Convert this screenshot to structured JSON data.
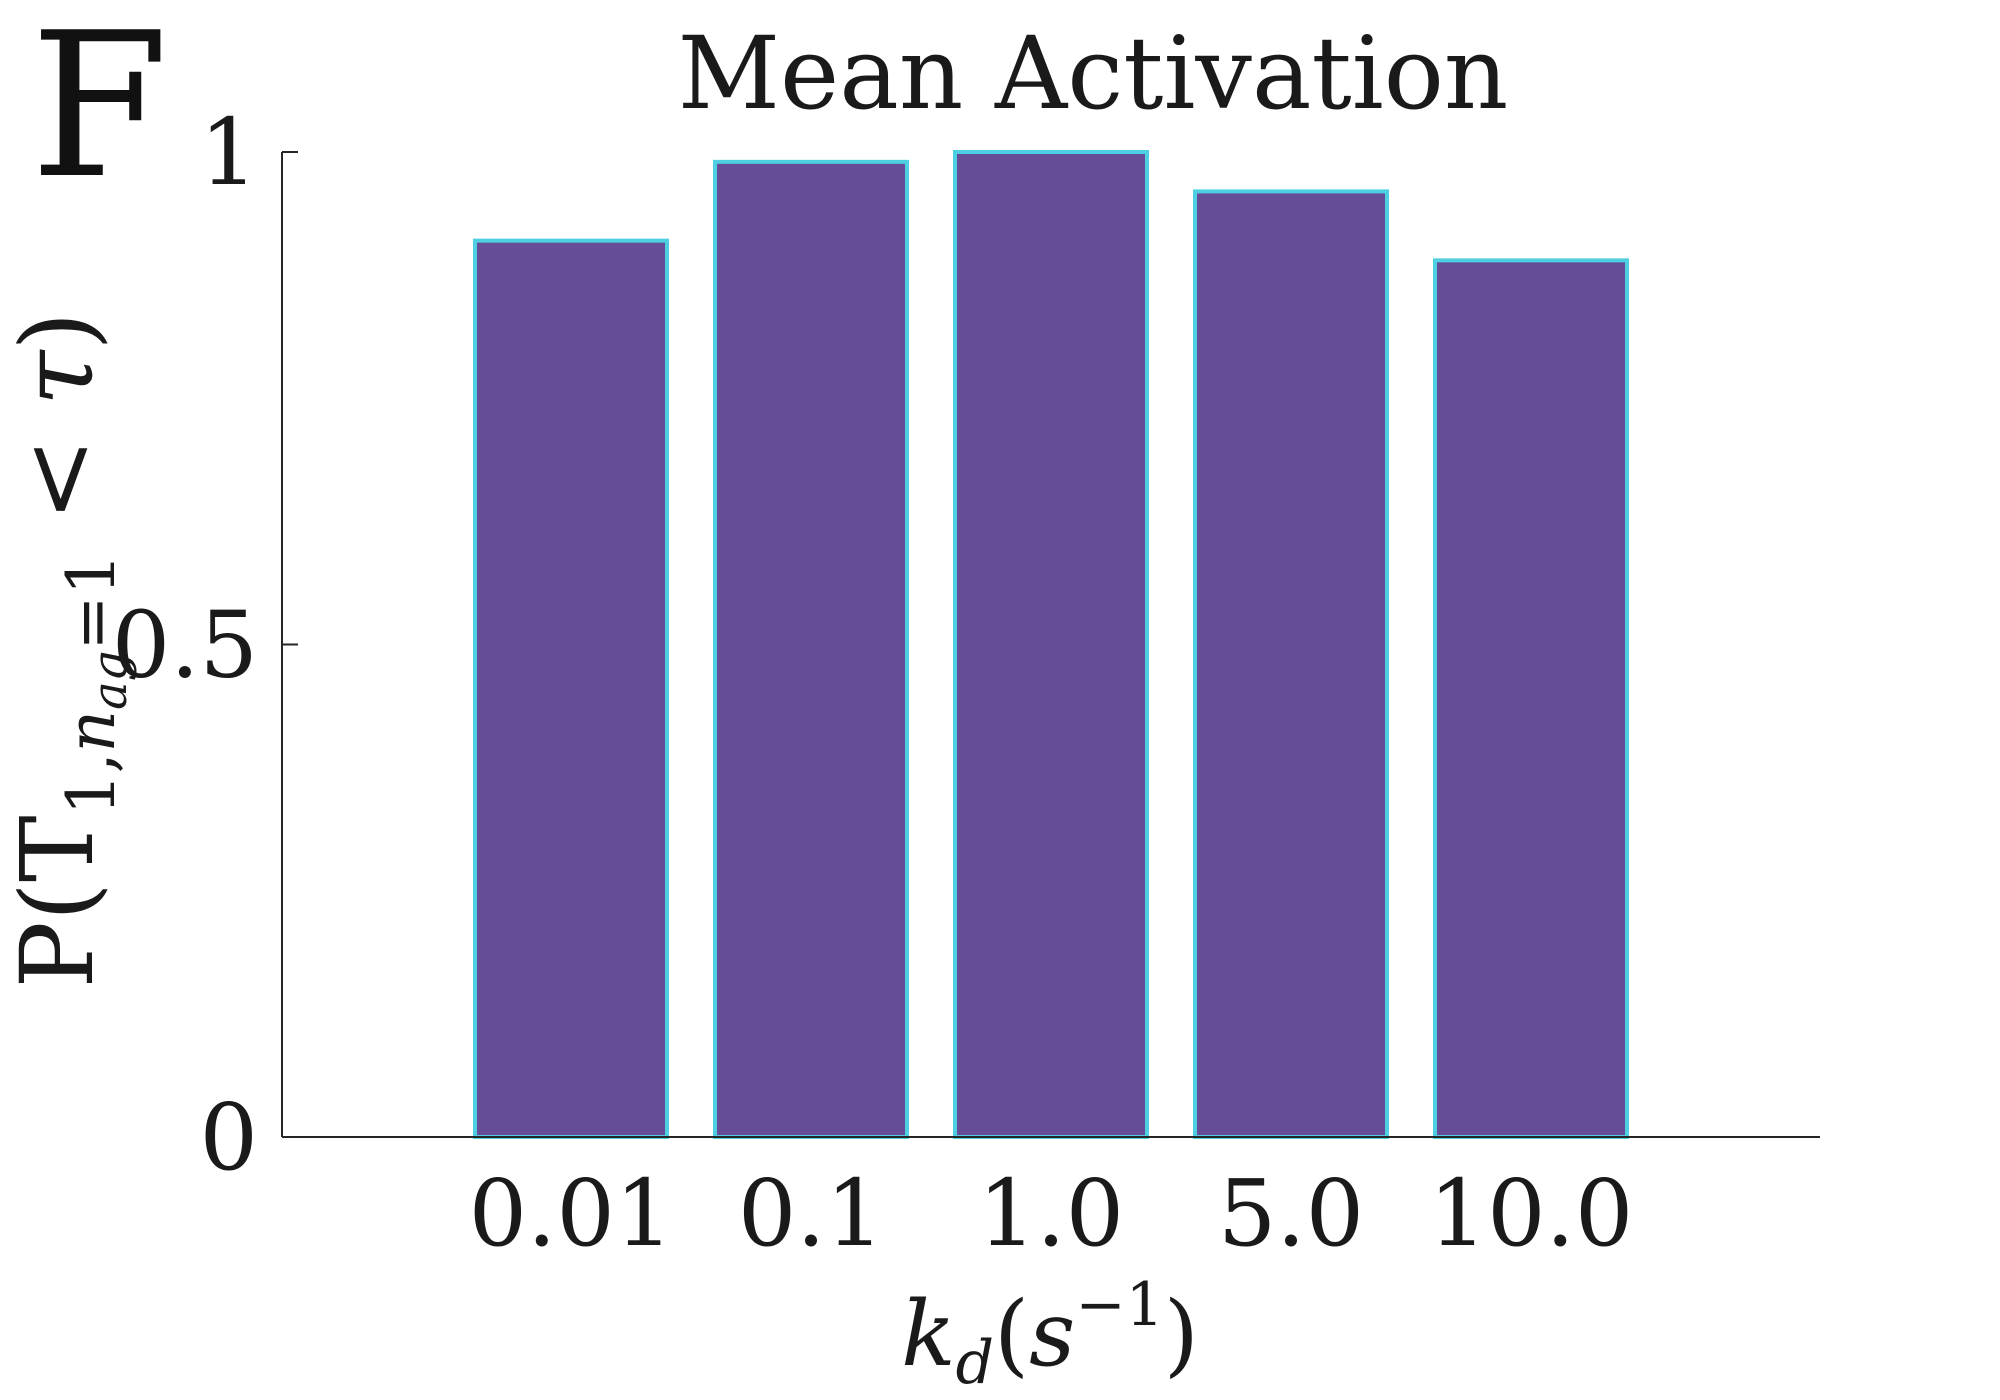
{
  "panel_label": "F",
  "chart_data": {
    "type": "bar",
    "title": "Mean Activation",
    "categories": [
      "0.01",
      "0.1",
      "1.0",
      "5.0",
      "10.0"
    ],
    "values": [
      0.91,
      0.99,
      1.0,
      0.96,
      0.89
    ],
    "ylim": [
      0,
      1
    ],
    "yticks": [
      "0",
      "0.5",
      "1"
    ],
    "ylabel": {
      "prefix": "P(",
      "var": "T",
      "sub_main": "1,",
      "sub_italic": "n",
      "sub_small": "ag",
      "sub_tail": "=1",
      "op": " < ",
      "tau": "τ",
      "suffix": ")"
    },
    "xlabel": {
      "k": "k",
      "k_sub": "d",
      "paren_open": "(",
      "s": "s",
      "exp": "−1",
      "paren_close": ")"
    },
    "colors": {
      "bar_fill": "#654e97",
      "bar_edge": "#4dd0e1",
      "axis": "#262626",
      "text": "#1a1a1a"
    },
    "grid": false,
    "legend": "none"
  }
}
